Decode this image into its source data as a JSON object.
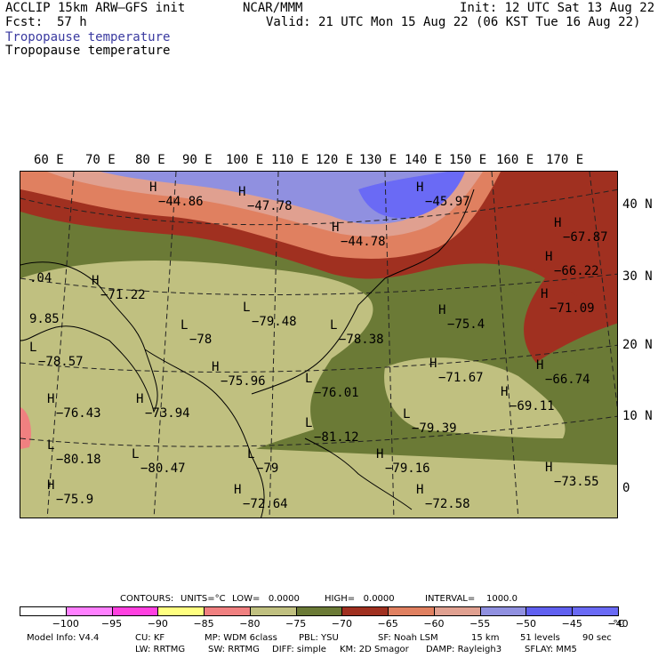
{
  "header": {
    "model_line": "ACCLIP 15km ARW–GFS init",
    "center": "NCAR/MMM",
    "init": "Init: 12 UTC Sat 13 Aug 22",
    "fcst_label": "Fcst:",
    "fcst_value": "57 h",
    "valid": "Valid: 21 UTC Mon 15 Aug 22 (06 KST Tue 16 Aug 22)",
    "field_title_1": "Tropopause temperature",
    "field_title_2": "Tropopause temperature"
  },
  "map": {
    "lon_labels": [
      "60 E",
      "70 E",
      "80 E",
      "90 E",
      "100 E",
      "110 E",
      "120 E",
      "130 E",
      "140 E",
      "150 E",
      "160 E",
      "170 E"
    ],
    "lat_labels": [
      "40 N",
      "30 N",
      "20 N",
      "10 N",
      "0"
    ],
    "extrema": [
      {
        "letter": "H",
        "value": "−44.86"
      },
      {
        "letter": "H",
        "value": "−47.78"
      },
      {
        "letter": "H",
        "value": "−44.78"
      },
      {
        "letter": "H",
        "value": "−45.97"
      },
      {
        "letter": "H",
        "value": "−67.87"
      },
      {
        "letter": "H",
        "value": "−66.22"
      },
      {
        "letter": "H",
        "value": "−71.09"
      },
      {
        "letter": "H",
        "value": "−66.74"
      },
      {
        "letter": "H",
        "value": "−71.22"
      },
      {
        "letter": "L",
        "value": "−79.48"
      },
      {
        "letter": "L",
        "value": "−78.38"
      },
      {
        "letter": "H",
        "value": "−75.4"
      },
      {
        "letter": "L",
        "value": "−78"
      },
      {
        "letter": "L",
        "value": "−78.57"
      },
      {
        "letter": "H",
        "value": "−75.96"
      },
      {
        "letter": "L",
        "value": "−76.01"
      },
      {
        "letter": "H",
        "value": "−71.67"
      },
      {
        "letter": "H",
        "value": "−69.11"
      },
      {
        "letter": "H",
        "value": "−76.43"
      },
      {
        "letter": "H",
        "value": "−73.94"
      },
      {
        "letter": "L",
        "value": "−81.12"
      },
      {
        "letter": "L",
        "value": "−79.39"
      },
      {
        "letter": "L",
        "value": "−80.18"
      },
      {
        "letter": "L",
        "value": "−80.47"
      },
      {
        "letter": "L",
        "value": "−79"
      },
      {
        "letter": "H",
        "value": "−79.16"
      },
      {
        "letter": "H",
        "value": "−73.55"
      },
      {
        "letter": "H",
        "value": "−75.9"
      },
      {
        "letter": "H",
        "value": "−72.64"
      },
      {
        "letter": "H",
        "value": "−72.58"
      },
      {
        "letter": "",
        "value": ".04"
      },
      {
        "letter": "",
        "value": "9.85"
      }
    ]
  },
  "contours_info": {
    "contours": "CONTOURS:",
    "units": "UNITS=°C",
    "low": "LOW=   0.0000",
    "high": "HIGH=   0.0000",
    "interval": "INTERVAL=    1000.0"
  },
  "colorbar": {
    "colors": [
      "#ffffff",
      "#ff80ff",
      "#ff40e0",
      "#ffff80",
      "#f08080",
      "#c0c080",
      "#6b7a36",
      "#a03020",
      "#e08060",
      "#e0a090",
      "#9090e0",
      "#6060f0",
      "#6a6af5"
    ],
    "labels": [
      "−100",
      "−95",
      "−90",
      "−85",
      "−80",
      "−75",
      "−70",
      "−65",
      "−60",
      "−55",
      "−50",
      "−45",
      "−40"
    ],
    "unit": "°C"
  },
  "footer": {
    "line1": [
      "Model Info: V4.4",
      "CU: KF",
      "MP: WDM 6class",
      "PBL: YSU",
      "SF: Noah LSM",
      "15 km",
      "51 levels",
      "90 sec"
    ],
    "line2": [
      "LW: RRTMG",
      "SW: RRTMG",
      "DIFF: simple",
      "KM: 2D Smagor",
      "DAMP: Rayleigh3",
      "SFLAY: MM5"
    ]
  }
}
